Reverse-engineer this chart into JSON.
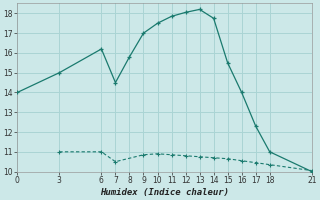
{
  "xlabel": "Humidex (Indice chaleur)",
  "bg_color": "#cce8e8",
  "grid_color": "#aad4d4",
  "line_color": "#1a7a6e",
  "xlim": [
    0,
    21
  ],
  "ylim": [
    10,
    18.5
  ],
  "xticks": [
    0,
    3,
    6,
    7,
    8,
    9,
    10,
    11,
    12,
    13,
    14,
    15,
    16,
    17,
    18,
    21
  ],
  "yticks": [
    10,
    11,
    12,
    13,
    14,
    15,
    16,
    17,
    18
  ],
  "line1_x": [
    0,
    3,
    6,
    7,
    8,
    9,
    10,
    11,
    12,
    13,
    14,
    15,
    16,
    17,
    18,
    21
  ],
  "line1_y": [
    14,
    15,
    16.2,
    14.5,
    15.8,
    17.0,
    17.5,
    17.85,
    18.05,
    18.2,
    17.75,
    15.5,
    14.0,
    12.3,
    11.0,
    10.0
  ],
  "line2_x": [
    3,
    6,
    7,
    9,
    10,
    11,
    12,
    13,
    14,
    15,
    16,
    17,
    18,
    21
  ],
  "line2_y": [
    11.0,
    11.0,
    10.5,
    10.85,
    10.9,
    10.85,
    10.8,
    10.75,
    10.7,
    10.65,
    10.55,
    10.45,
    10.35,
    10.05
  ]
}
